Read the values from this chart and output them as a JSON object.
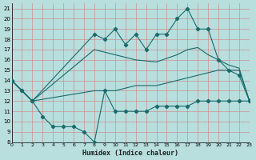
{
  "xlabel": "Humidex (Indice chaleur)",
  "bg_color": "#b8dede",
  "grid_color_v": "#e89898",
  "grid_color_h": "#b8dede",
  "line_color": "#1a6b6b",
  "xlim": [
    0,
    23
  ],
  "ylim": [
    8,
    21.5
  ],
  "yticks": [
    8,
    9,
    10,
    11,
    12,
    13,
    14,
    15,
    16,
    17,
    18,
    19,
    20,
    21
  ],
  "xticks": [
    0,
    1,
    2,
    3,
    4,
    5,
    6,
    7,
    8,
    9,
    10,
    11,
    12,
    13,
    14,
    15,
    16,
    17,
    18,
    19,
    20,
    21,
    22,
    23
  ],
  "line1_x": [
    0,
    1,
    2,
    8,
    9,
    10,
    11,
    12,
    13,
    14,
    15,
    16,
    17,
    18,
    19,
    20,
    21,
    22,
    23
  ],
  "line1_y": [
    14,
    13,
    12,
    18.5,
    18,
    19,
    17.5,
    18.5,
    17,
    18.5,
    18.5,
    20,
    21,
    19,
    19,
    16,
    15,
    14.5,
    12
  ],
  "line2_x": [
    0,
    2,
    8,
    10,
    12,
    14,
    16,
    17,
    18,
    19,
    20,
    21,
    22,
    23
  ],
  "line2_y": [
    14,
    12,
    17,
    16.5,
    16,
    15.8,
    16.5,
    17,
    17.2,
    16.5,
    16,
    15.5,
    15.2,
    12
  ],
  "line3_x": [
    0,
    2,
    8,
    10,
    12,
    14,
    16,
    18,
    20,
    22,
    23
  ],
  "line3_y": [
    14,
    12,
    13,
    13,
    13.5,
    13.5,
    14,
    14.5,
    15,
    15,
    12
  ],
  "line4_x": [
    0,
    1,
    2,
    3,
    4,
    5,
    6,
    7,
    8,
    9,
    10,
    11,
    12,
    13,
    14,
    15,
    16,
    17,
    18,
    19,
    20,
    21,
    22,
    23
  ],
  "line4_y": [
    14,
    13,
    12,
    10.5,
    9.5,
    9.5,
    9.5,
    9.0,
    8.0,
    13,
    11,
    11,
    11,
    11,
    11.5,
    11.5,
    11.5,
    11.5,
    12,
    12,
    12,
    12,
    12,
    12
  ]
}
